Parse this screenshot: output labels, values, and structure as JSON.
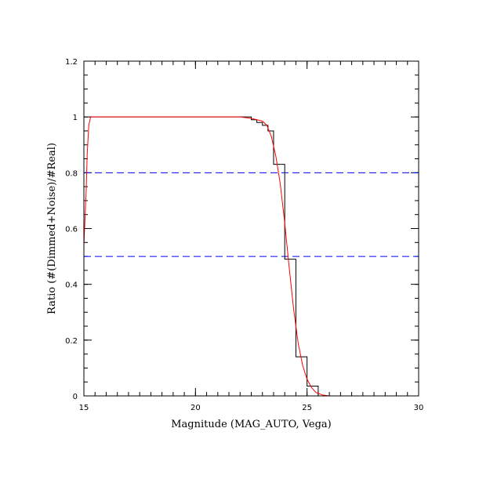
{
  "chart_data": {
    "type": "line",
    "title": "",
    "xlabel": "Magnitude (MAG_AUTO, Vega)",
    "ylabel": "Ratio (#(Dimmed+Noise)/#Real)",
    "xlim": [
      15,
      30
    ],
    "ylim": [
      0,
      1.2
    ],
    "x_ticks": [
      "15",
      "20",
      "25",
      "30"
    ],
    "y_ticks": [
      "0",
      "0.2",
      "0.4",
      "0.6",
      "0.8",
      "1",
      "1.2"
    ],
    "x_tick_values": [
      15,
      20,
      25,
      30
    ],
    "y_tick_values": [
      0,
      0.2,
      0.4,
      0.6,
      0.8,
      1.0,
      1.2
    ],
    "grid": false,
    "series": [
      {
        "style": "step",
        "color": "#000000",
        "x": [
          15.25,
          22.5,
          22.75,
          23.0,
          23.25,
          23.5,
          23.75,
          24.0,
          24.25,
          24.5,
          24.75,
          25.0,
          25.25,
          25.5,
          30.0
        ],
        "y": [
          1.0,
          0.99,
          0.98,
          0.97,
          0.95,
          0.83,
          0.83,
          0.49,
          0.49,
          0.14,
          0.14,
          0.035,
          0.035,
          0.0,
          0.0
        ]
      },
      {
        "style": "line",
        "color": "#ff0000",
        "x": [
          15.0,
          15.1,
          15.15,
          15.22,
          15.3,
          22.0,
          22.5,
          23.0,
          23.2,
          23.4,
          23.6,
          23.8,
          24.0,
          24.2,
          24.4,
          24.6,
          24.8,
          25.0,
          25.2,
          25.4,
          25.7,
          26.0,
          30.0
        ],
        "y": [
          0.54,
          0.73,
          0.87,
          0.97,
          1.0,
          1.0,
          0.995,
          0.985,
          0.97,
          0.93,
          0.86,
          0.76,
          0.62,
          0.46,
          0.31,
          0.19,
          0.11,
          0.06,
          0.03,
          0.012,
          0.003,
          0.0,
          0.0
        ]
      }
    ],
    "reference_lines": [
      {
        "y": 0.8,
        "color": "#0000ff",
        "style": "dashed"
      },
      {
        "y": 0.5,
        "color": "#0000ff",
        "style": "dashed"
      }
    ]
  }
}
